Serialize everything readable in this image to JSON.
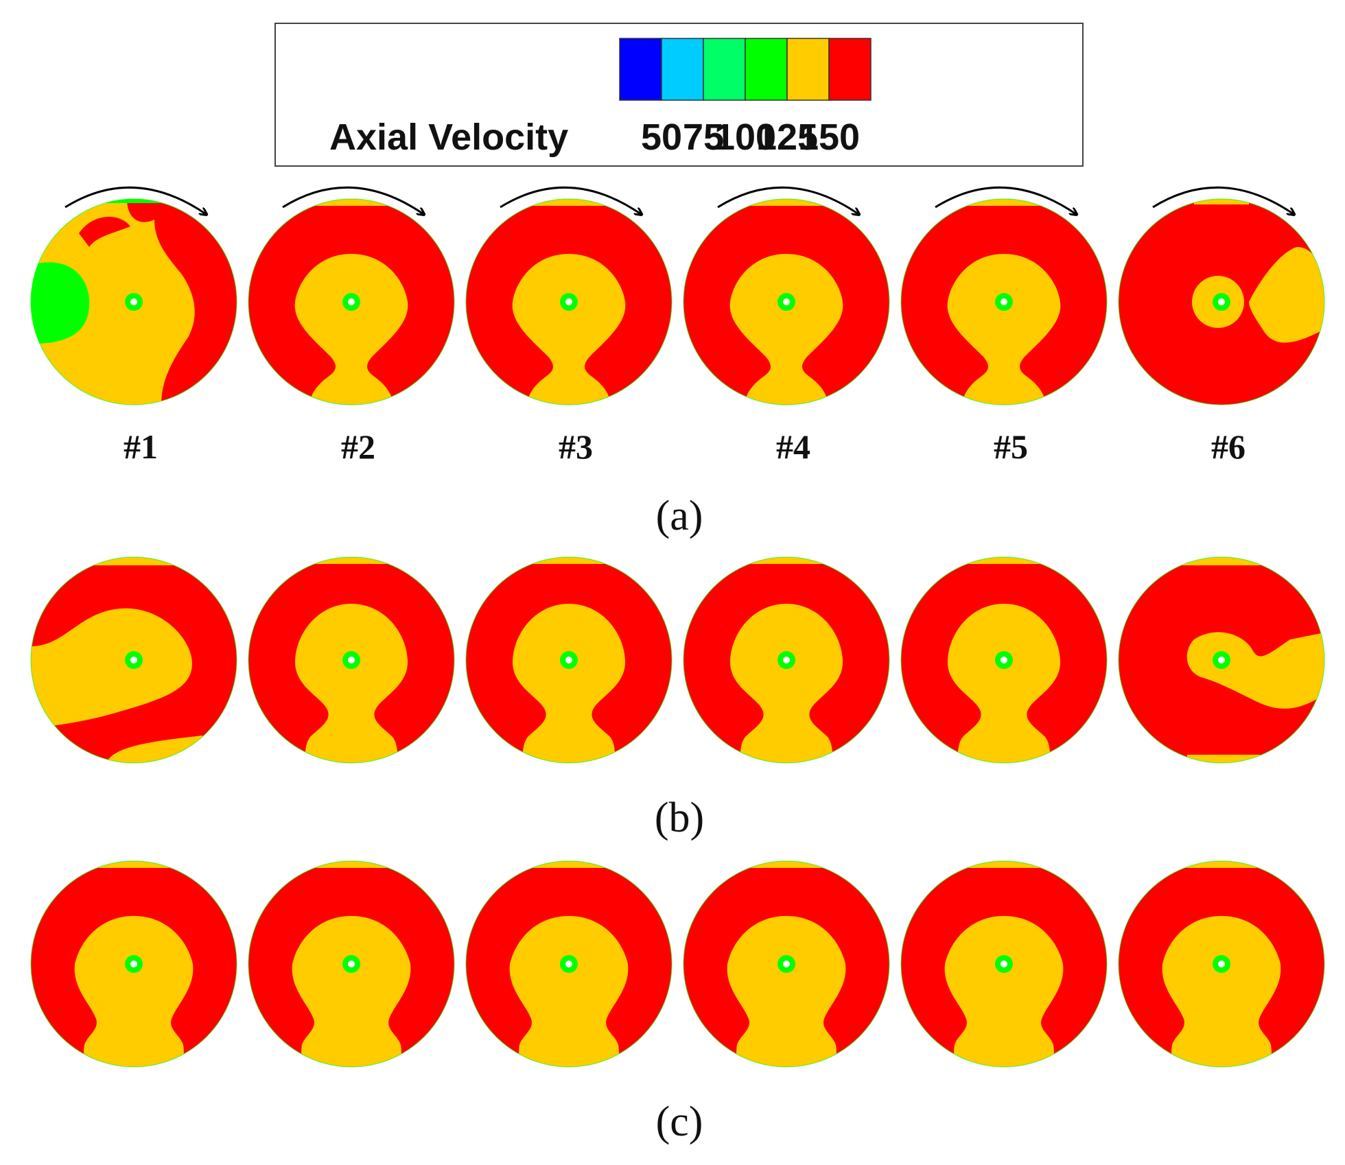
{
  "figure": {
    "legend": {
      "title": "Axial Velocity",
      "ticks": [
        "50",
        "75",
        "100",
        "125",
        "150"
      ],
      "colors": [
        "#0000ff",
        "#00ccff",
        "#00ff66",
        "#00ff00",
        "#ffcc00",
        "#ff0000"
      ]
    },
    "colors": {
      "high": "#ff0000",
      "mid": "#ffcc00",
      "low": "#00ff00",
      "hub": "#ffffff",
      "stroke": "#000000"
    },
    "case_labels": [
      "#1",
      "#2",
      "#3",
      "#4",
      "#5",
      "#6"
    ],
    "panels": [
      {
        "label": "(a)",
        "rotation_arrows": true
      },
      {
        "label": "(b)",
        "rotation_arrows": false
      },
      {
        "label": "(c)",
        "rotation_arrows": false
      }
    ]
  }
}
